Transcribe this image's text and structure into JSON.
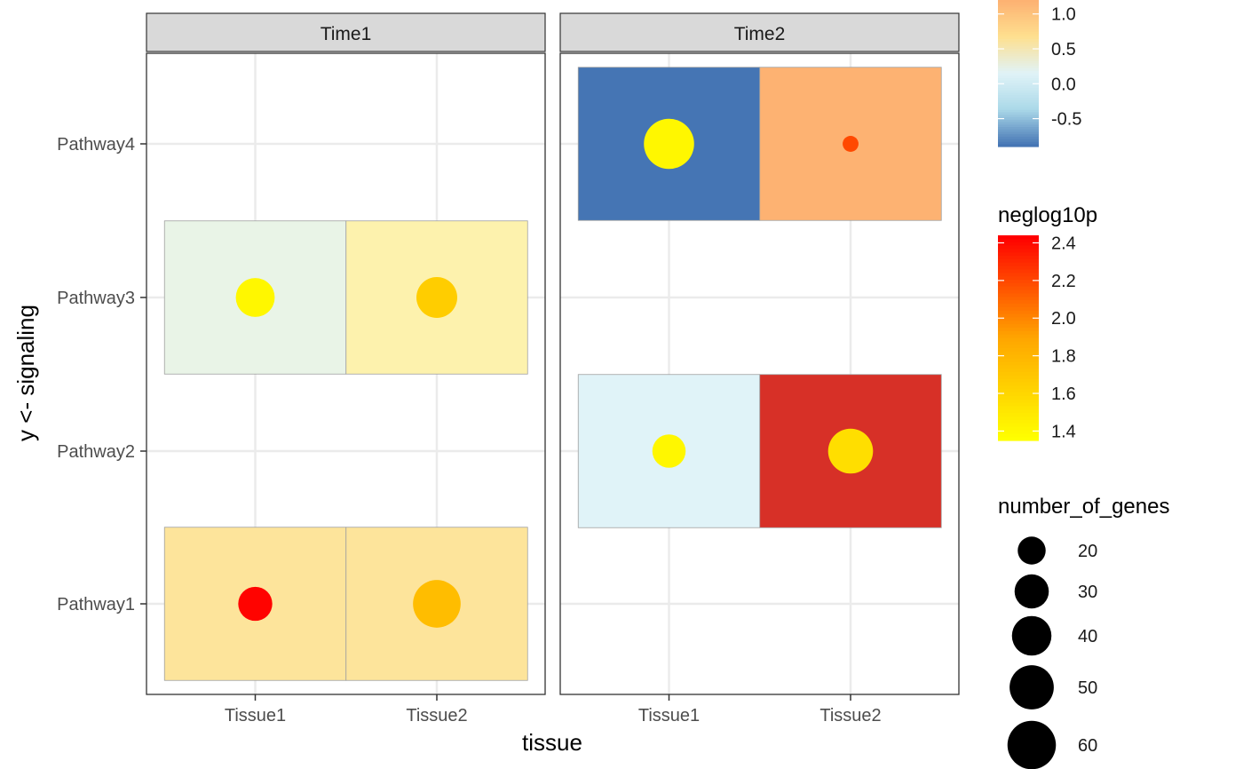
{
  "chart_data": {
    "type": "heatmap",
    "xlabel": "tissue",
    "ylabel": "y <- signaling",
    "x_categories": [
      "Tissue1",
      "Tissue2"
    ],
    "y_categories": [
      "Pathway1",
      "Pathway2",
      "Pathway3",
      "Pathway4"
    ],
    "facets": [
      "Time1",
      "Time2"
    ],
    "grid": true,
    "tiles": [
      {
        "facet": "Time1",
        "x": "Tissue1",
        "y": "Pathway3",
        "fill": "#e9f4e7",
        "neglog10p": 1.4,
        "number_of_genes": 30
      },
      {
        "facet": "Time1",
        "x": "Tissue2",
        "y": "Pathway3",
        "fill": "#fdf2ad",
        "neglog10p": 1.65,
        "number_of_genes": 33
      },
      {
        "facet": "Time1",
        "x": "Tissue1",
        "y": "Pathway1",
        "fill": "#fde49b",
        "neglog10p": 2.43,
        "number_of_genes": 23
      },
      {
        "facet": "Time1",
        "x": "Tissue2",
        "y": "Pathway1",
        "fill": "#fde49b",
        "neglog10p": 1.75,
        "number_of_genes": 45
      },
      {
        "facet": "Time2",
        "x": "Tissue1",
        "y": "Pathway4",
        "fill": "#4575b4",
        "neglog10p": 1.4,
        "number_of_genes": 50
      },
      {
        "facet": "Time2",
        "x": "Tissue2",
        "y": "Pathway4",
        "fill": "#fdb272",
        "neglog10p": 2.2,
        "number_of_genes": 5
      },
      {
        "facet": "Time2",
        "x": "Tissue1",
        "y": "Pathway2",
        "fill": "#e0f3f8",
        "neglog10p": 1.4,
        "number_of_genes": 22
      },
      {
        "facet": "Time2",
        "x": "Tissue2",
        "y": "Pathway2",
        "fill": "#d73027",
        "neglog10p": 1.55,
        "number_of_genes": 40
      }
    ],
    "legends": {
      "fill": {
        "title": "",
        "ticks": [
          "1.0",
          "0.5",
          "0.0",
          "-0.5"
        ],
        "tick_values": [
          1.0,
          0.5,
          0.0,
          -0.5
        ],
        "range": [
          -0.9,
          1.2
        ],
        "colors": [
          "#4575b4",
          "#abd9e9",
          "#e0f3f8",
          "#fee090",
          "#fdb272"
        ]
      },
      "neglog10p": {
        "title": "neglog10p",
        "ticks": [
          "2.4",
          "2.2",
          "2.0",
          "1.8",
          "1.6",
          "1.4"
        ],
        "tick_values": [
          2.4,
          2.2,
          2.0,
          1.8,
          1.6,
          1.4
        ],
        "range": [
          1.35,
          2.44
        ],
        "colors": [
          "#ffff00",
          "#ffa500",
          "#ff0000"
        ]
      },
      "number_of_genes": {
        "title": "number_of_genes",
        "ticks": [
          "20",
          "30",
          "40",
          "50",
          "60"
        ],
        "values": [
          20,
          30,
          40,
          50,
          60
        ]
      }
    }
  }
}
